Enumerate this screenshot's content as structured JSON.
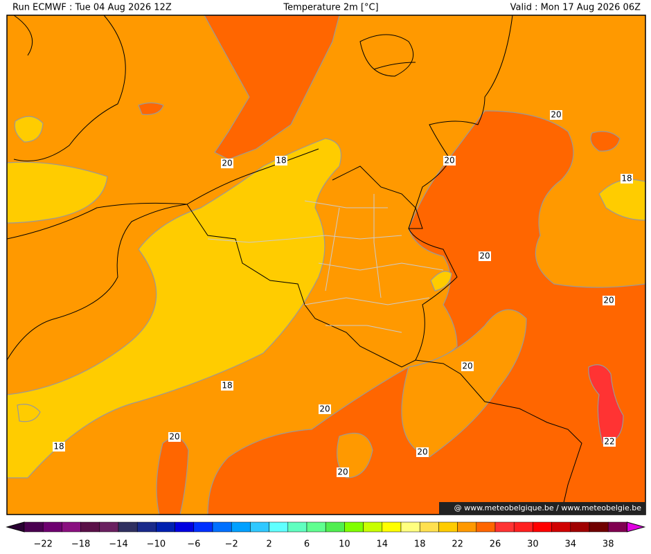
{
  "header": {
    "run": "Run ECMWF : Tue 04 Aug 2026 12Z",
    "title": "Temperature 2m [°C]",
    "valid": "Valid : Mon 17 Aug 2026 06Z"
  },
  "contour_labels": [
    "20",
    "18",
    "20",
    "20",
    "18",
    "20",
    "20",
    "20",
    "18",
    "20",
    "20",
    "18",
    "20",
    "20",
    "22"
  ],
  "watermark": "@ www.meteobelgique.be / www.meteobelgie.be",
  "colorbar": {
    "labels": [
      "−22",
      "−18",
      "−14",
      "−10",
      "−6",
      "−2",
      "2",
      "6",
      "10",
      "14",
      "18",
      "22",
      "26",
      "30",
      "34",
      "38"
    ]
  }
}
